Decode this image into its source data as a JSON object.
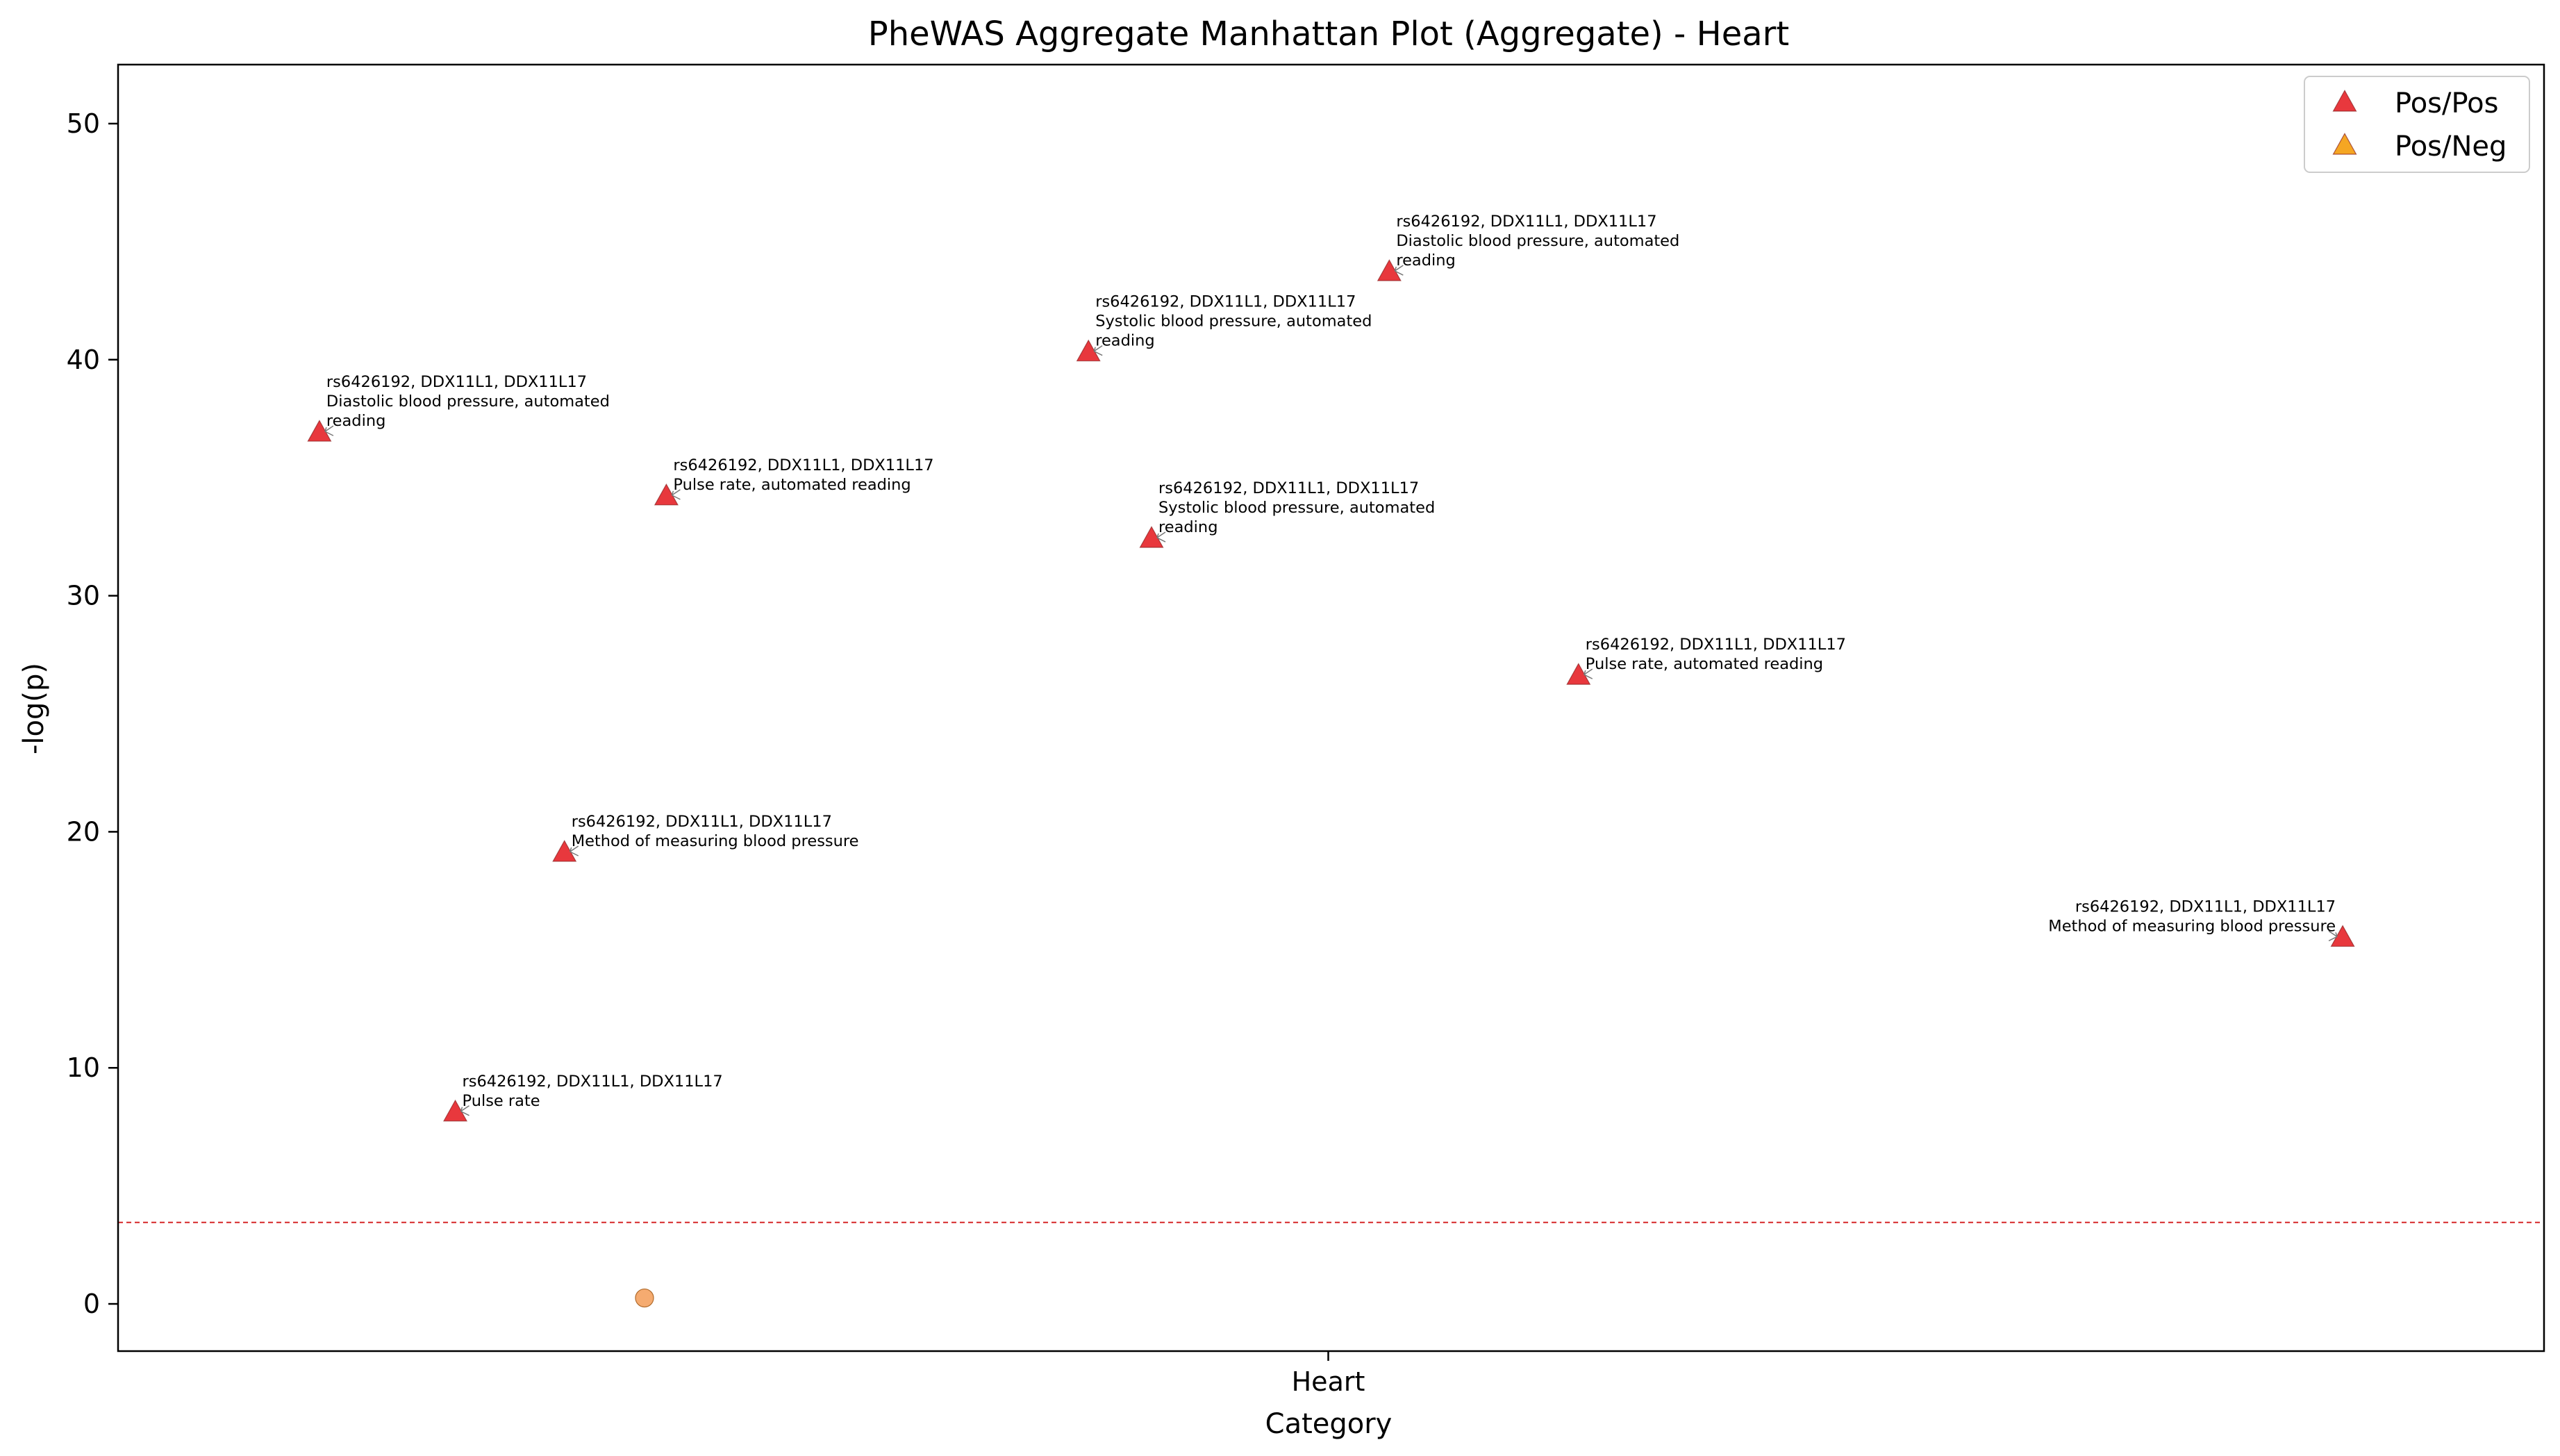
{
  "chart_data": {
    "type": "scatter",
    "title": "PheWAS Aggregate Manhattan Plot (Aggregate) - Heart",
    "xlabel": "Category",
    "ylabel": "-log(p)",
    "x_categories": [
      "Heart"
    ],
    "ylim": [
      -2,
      52.5
    ],
    "xlim": [
      0,
      1
    ],
    "y_ticks": [
      0,
      10,
      20,
      30,
      40,
      50
    ],
    "significance_threshold": 3.45,
    "threshold_color": "#d62728",
    "grid": false,
    "legend": {
      "position": "top-right",
      "entries": [
        {
          "label": "Pos/Pos",
          "color": "#e8383d",
          "marker": "triangle"
        },
        {
          "label": "Pos/Neg",
          "color": "#f5a623",
          "marker": "triangle"
        }
      ]
    },
    "series": [
      {
        "name": "Pos/Pos",
        "color": "#e8383d",
        "marker": "triangle",
        "points": [
          {
            "x": 0.083,
            "y": 36.9,
            "label": [
              "rs6426192, DDX11L1, DDX11L17",
              "Diastolic blood pressure, automated",
              "reading"
            ],
            "align": "right"
          },
          {
            "x": 0.139,
            "y": 8.1,
            "label": [
              "rs6426192, DDX11L1, DDX11L17",
              "Pulse rate"
            ],
            "align": "right"
          },
          {
            "x": 0.184,
            "y": 19.1,
            "label": [
              "rs6426192, DDX11L1, DDX11L17",
              "Method of measuring blood pressure"
            ],
            "align": "right"
          },
          {
            "x": 0.226,
            "y": 34.2,
            "label": [
              "rs6426192, DDX11L1, DDX11L17",
              "Pulse rate, automated reading"
            ],
            "align": "right"
          },
          {
            "x": 0.4,
            "y": 40.3,
            "label": [
              "rs6426192, DDX11L1, DDX11L17",
              "Systolic blood pressure, automated",
              "reading"
            ],
            "align": "right"
          },
          {
            "x": 0.426,
            "y": 32.4,
            "label": [
              "rs6426192, DDX11L1, DDX11L17",
              "Systolic blood pressure, automated",
              "reading"
            ],
            "align": "right"
          },
          {
            "x": 0.524,
            "y": 43.7,
            "label": [
              "rs6426192, DDX11L1, DDX11L17",
              "Diastolic blood pressure, automated",
              "reading"
            ],
            "align": "right"
          },
          {
            "x": 0.602,
            "y": 26.6,
            "label": [
              "rs6426192, DDX11L1, DDX11L17",
              "Pulse rate, automated reading"
            ],
            "align": "right"
          },
          {
            "x": 0.917,
            "y": 15.5,
            "label": [
              "rs6426192, DDX11L1, DDX11L17",
              "Method of measuring blood pressure"
            ],
            "align": "left"
          }
        ]
      },
      {
        "color": "#f4a261",
        "marker": "circle",
        "points": [
          {
            "x": 0.217,
            "y": 0.25
          }
        ]
      }
    ]
  }
}
